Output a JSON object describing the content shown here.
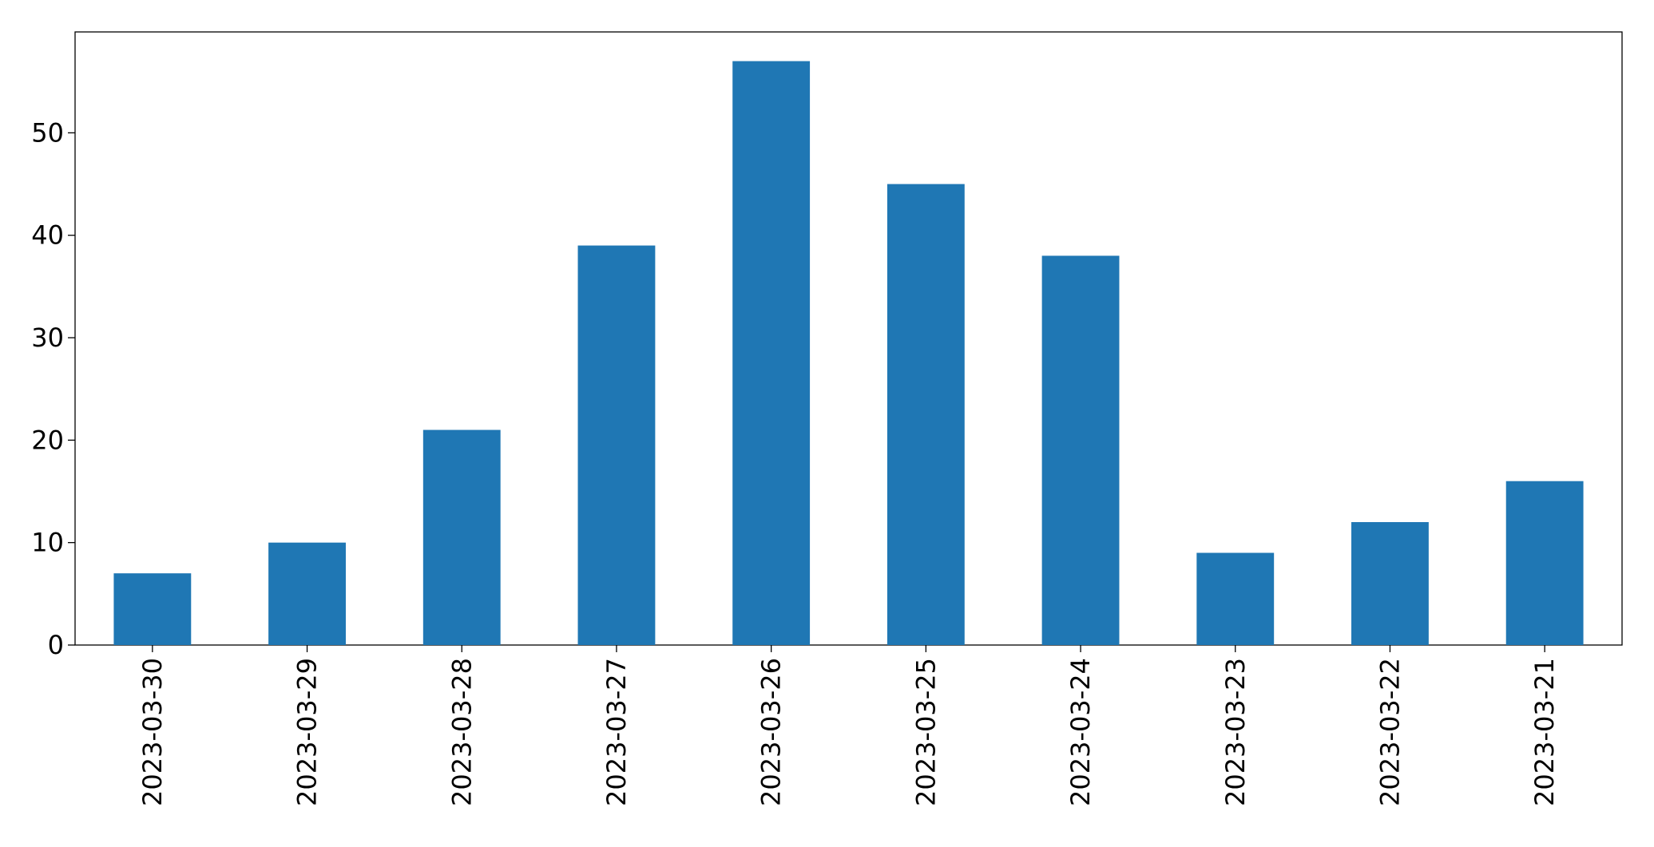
{
  "chart_data": {
    "type": "bar",
    "categories": [
      "2023-03-30",
      "2023-03-29",
      "2023-03-28",
      "2023-03-27",
      "2023-03-26",
      "2023-03-25",
      "2023-03-24",
      "2023-03-23",
      "2023-03-22",
      "2023-03-21"
    ],
    "values": [
      7,
      10,
      21,
      39,
      57,
      45,
      38,
      9,
      12,
      16
    ],
    "color": "#1f77b4",
    "ylim": [
      0,
      59.85
    ],
    "yticks": [
      0,
      10,
      20,
      30,
      40,
      50
    ],
    "grid": false
  }
}
